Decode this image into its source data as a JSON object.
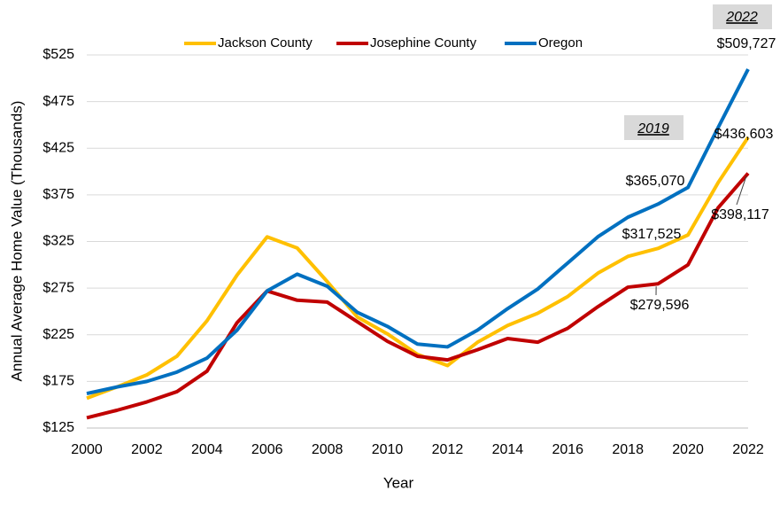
{
  "chart_data": {
    "type": "line",
    "x_label": "Year",
    "y_label": "Annual Average Home Value (Thousands)",
    "x": [
      2000,
      2001,
      2002,
      2003,
      2004,
      2005,
      2006,
      2007,
      2008,
      2009,
      2010,
      2011,
      2012,
      2013,
      2014,
      2015,
      2016,
      2017,
      2018,
      2019,
      2020,
      2021,
      2022
    ],
    "xlim": [
      2000,
      2022
    ],
    "xticks": [
      2000,
      2002,
      2004,
      2006,
      2008,
      2010,
      2012,
      2014,
      2016,
      2018,
      2020,
      2022
    ],
    "ylim": [
      125,
      525
    ],
    "yticks": [
      {
        "value": 125,
        "label": "$125"
      },
      {
        "value": 175,
        "label": "$175"
      },
      {
        "value": 225,
        "label": "$225"
      },
      {
        "value": 275,
        "label": "$275"
      },
      {
        "value": 325,
        "label": "$325"
      },
      {
        "value": 375,
        "label": "$375"
      },
      {
        "value": 425,
        "label": "$425"
      },
      {
        "value": 475,
        "label": "$475"
      },
      {
        "value": 525,
        "label": "$525"
      }
    ],
    "grid": true,
    "legend": "top",
    "series": [
      {
        "name": "Jackson County",
        "color": "#ffc000",
        "values": [
          157,
          169,
          182,
          202,
          240,
          289,
          330,
          318,
          282,
          244,
          226,
          204,
          192,
          217,
          235,
          248,
          266,
          291,
          309,
          317.525,
          332,
          388,
          436.603
        ],
        "value_labels": [
          null,
          null,
          null,
          null,
          null,
          null,
          null,
          null,
          null,
          null,
          null,
          null,
          null,
          null,
          null,
          null,
          null,
          null,
          null,
          "$317,525",
          null,
          null,
          "$436,603"
        ]
      },
      {
        "name": "Josephine County",
        "color": "#c00000",
        "values": [
          136,
          144,
          153,
          164,
          186,
          238,
          272,
          262,
          260,
          239,
          218,
          202,
          198,
          209,
          221,
          217,
          232,
          255,
          276,
          279.596,
          300,
          361,
          398.117
        ],
        "value_labels": [
          null,
          null,
          null,
          null,
          null,
          null,
          null,
          null,
          null,
          null,
          null,
          null,
          null,
          null,
          null,
          null,
          null,
          null,
          null,
          "$279,596",
          null,
          null,
          "$398,117"
        ]
      },
      {
        "name": "Oregon",
        "color": "#0070c0",
        "values": [
          162,
          169,
          175,
          185,
          200,
          230,
          272,
          290,
          277,
          249,
          234,
          215,
          212,
          230,
          253,
          274,
          302,
          330,
          351,
          365.07,
          383,
          447,
          509.727
        ],
        "value_labels": [
          null,
          null,
          null,
          null,
          null,
          null,
          null,
          null,
          null,
          null,
          null,
          null,
          null,
          null,
          null,
          null,
          null,
          null,
          null,
          "$365,070",
          null,
          null,
          "$509,727"
        ]
      }
    ],
    "annotations": [
      "2019",
      "2022"
    ]
  }
}
